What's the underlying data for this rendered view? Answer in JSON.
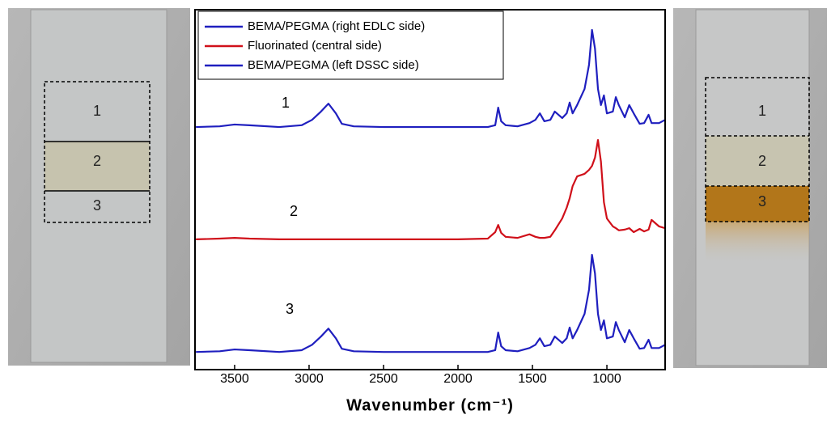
{
  "chart_data": {
    "type": "line",
    "xlabel": "Wavenumber (cm⁻¹)",
    "x": [
      3760,
      3600,
      3500,
      3400,
      3200,
      3050,
      2980,
      2920,
      2870,
      2820,
      2780,
      2700,
      2500,
      2000,
      1800,
      1750,
      1730,
      1710,
      1680,
      1600,
      1520,
      1480,
      1450,
      1420,
      1380,
      1350,
      1300,
      1270,
      1250,
      1230,
      1200,
      1150,
      1120,
      1100,
      1080,
      1060,
      1040,
      1020,
      1000,
      960,
      940,
      920,
      880,
      850,
      820,
      780,
      750,
      720,
      700,
      650,
      609
    ],
    "series": [
      {
        "name": "BEMA/PEGMA (right EDLC side)",
        "color": "#1f1fbf",
        "values": [
          67.4,
          67.6,
          68.1,
          67.9,
          67.4,
          67.9,
          69.4,
          71.7,
          73.9,
          71.2,
          68.3,
          67.6,
          67.4,
          67.4,
          67.4,
          67.9,
          72.8,
          69.0,
          67.9,
          67.6,
          68.5,
          69.4,
          71.2,
          69.0,
          69.4,
          71.7,
          69.9,
          71.2,
          74.2,
          71.2,
          73.5,
          78.0,
          84.7,
          94.4,
          89.2,
          78.0,
          73.5,
          76.2,
          71.2,
          71.7,
          75.7,
          73.5,
          70.1,
          73.5,
          71.2,
          68.3,
          68.5,
          70.8,
          68.5,
          68.5,
          69.4
        ]
      },
      {
        "name": "Fluorinated (central side)",
        "color": "#d0101a",
        "values": [
          36.2,
          36.4,
          36.6,
          36.4,
          36.2,
          36.2,
          36.2,
          36.2,
          36.2,
          36.2,
          36.2,
          36.2,
          36.2,
          36.2,
          36.4,
          38.2,
          40.2,
          38.0,
          36.9,
          36.6,
          37.6,
          36.9,
          36.6,
          36.6,
          36.9,
          38.7,
          42.0,
          45.0,
          47.6,
          51.0,
          53.7,
          54.4,
          55.5,
          56.6,
          58.9,
          63.8,
          57.8,
          46.5,
          42.0,
          39.8,
          39.3,
          38.7,
          38.9,
          39.3,
          38.2,
          39.1,
          38.4,
          38.9,
          41.6,
          39.8,
          39.3
        ]
      },
      {
        "name": "BEMA/PEGMA (left DSSC side)",
        "color": "#1f1fbf",
        "values": [
          4.9,
          5.1,
          5.6,
          5.4,
          4.9,
          5.4,
          6.9,
          9.2,
          11.4,
          8.7,
          5.8,
          5.1,
          4.9,
          4.9,
          4.9,
          5.4,
          10.3,
          6.5,
          5.4,
          5.1,
          6.0,
          6.9,
          8.7,
          6.5,
          6.9,
          9.2,
          7.4,
          8.7,
          11.7,
          8.7,
          11.0,
          15.5,
          22.2,
          31.9,
          26.7,
          15.5,
          11.0,
          13.7,
          8.7,
          9.2,
          13.2,
          11.0,
          7.6,
          11.0,
          8.7,
          5.8,
          6.0,
          8.3,
          6.0,
          6.0,
          6.9
        ]
      }
    ],
    "annotations": [
      "1",
      "2",
      "3"
    ],
    "xlim": [
      3766,
      609
    ],
    "xticks": [
      3500,
      3000,
      2500,
      2000,
      1500,
      1000
    ],
    "ylim": [
      0,
      100
    ],
    "legend": "upper-left"
  },
  "photos": {
    "left": {
      "labels": [
        "1",
        "2",
        "3"
      ]
    },
    "right": {
      "labels": [
        "1",
        "2",
        "3"
      ]
    }
  }
}
